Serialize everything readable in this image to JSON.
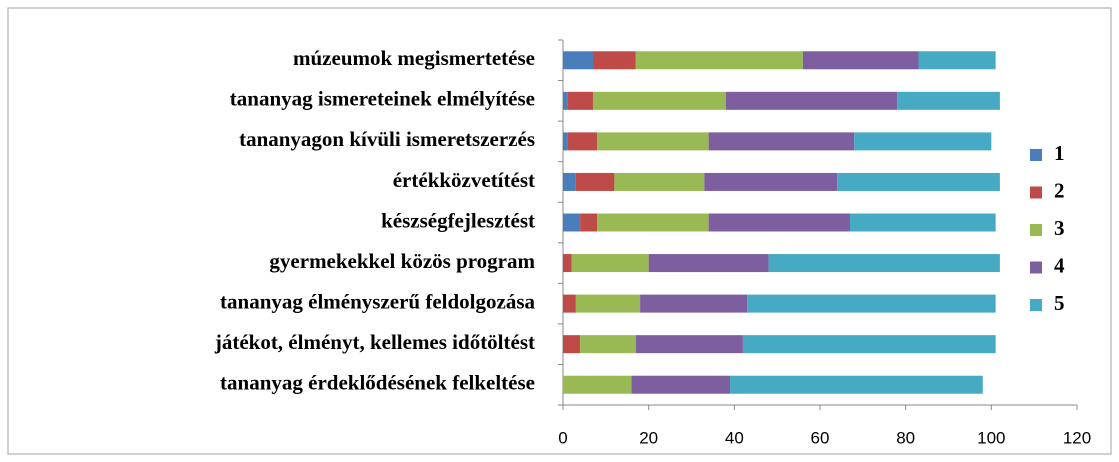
{
  "chart_data": {
    "type": "stacked_bar_horizontal",
    "categories": [
      "múzeumok megismertetése",
      "tananyag ismereteinek elmélyítése",
      "tananyagon kívüli ismeretszerzés",
      "értékközvetítést",
      "készségfejlesztést",
      "gyermekekkel közös program",
      "tananyag élményszerű feldolgozása",
      "játékot, élményt, kellemes időtöltést",
      "tananyag érdeklődésének felkeltése"
    ],
    "series": [
      {
        "name": "1",
        "color": "#4a7ebb",
        "values": [
          7,
          1,
          1,
          3,
          4,
          0,
          0,
          0,
          0
        ]
      },
      {
        "name": "2",
        "color": "#be4b48",
        "values": [
          10,
          6,
          7,
          9,
          4,
          2,
          3,
          4,
          0
        ]
      },
      {
        "name": "3",
        "color": "#98b954",
        "values": [
          39,
          31,
          26,
          21,
          26,
          18,
          15,
          13,
          16
        ]
      },
      {
        "name": "4",
        "color": "#7d5fa0",
        "values": [
          27,
          40,
          34,
          31,
          33,
          28,
          25,
          25,
          23
        ]
      },
      {
        "name": "5",
        "color": "#46aac5",
        "values": [
          18,
          24,
          32,
          38,
          34,
          54,
          58,
          59,
          59
        ]
      }
    ],
    "xlim": [
      0,
      120
    ],
    "xticks": [
      0,
      20,
      40,
      60,
      80,
      100,
      120
    ],
    "legend": "right"
  }
}
